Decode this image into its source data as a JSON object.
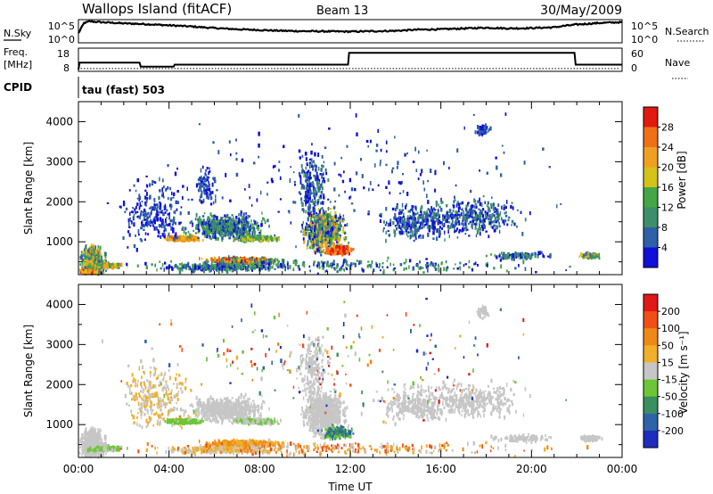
{
  "header": {
    "station": "Wallops Island (fitACF)",
    "beam": "Beam 13",
    "date": "30/May/2009"
  },
  "top_panels": {
    "nsky_label": "N.Sky",
    "nsky_ticks": [
      "10^5",
      "10^0"
    ],
    "nsearch_label": "N.Search",
    "nsearch_ticks": [
      "10^5",
      "10^0"
    ],
    "freq_label": "Freq.",
    "freq_unit": "[MHz]",
    "freq_ticks": [
      "18",
      "8"
    ],
    "nave_label": "Nave",
    "nave_ticks": [
      "60",
      "0"
    ],
    "cpid_label": "CPID",
    "cpid_value": "tau (fast) 503"
  },
  "colors": {
    "power": [
      "#1010d8",
      "#2f5fa8",
      "#3c8f6a",
      "#46a646",
      "#d4c21a",
      "#f0a020",
      "#f07018",
      "#e01a10"
    ],
    "velocity": [
      "#1e2dbe",
      "#2d63a8",
      "#3a8f5e",
      "#6cc636",
      "#c6c6c6",
      "#f0b028",
      "#f08818",
      "#f05018",
      "#e01818"
    ]
  },
  "chart_data": [
    {
      "type": "line",
      "name": "sky-noise",
      "x_hours": [
        0,
        0.25,
        0.5,
        1,
        2,
        3,
        4,
        5,
        6,
        7,
        8,
        9,
        10,
        11,
        12,
        13,
        14,
        15,
        16,
        17,
        18,
        19,
        20,
        21,
        21.5,
        22,
        23,
        24
      ],
      "y_log10": [
        2.0,
        4.6,
        5.0,
        4.8,
        4.5,
        4.3,
        4.0,
        3.7,
        3.3,
        3.0,
        2.8,
        2.6,
        2.5,
        2.45,
        2.4,
        2.5,
        2.6,
        2.9,
        3.0,
        3.2,
        3.4,
        3.2,
        3.3,
        3.5,
        3.9,
        4.2,
        4.6,
        4.8
      ],
      "ylim": [
        0,
        5
      ]
    },
    {
      "type": "line",
      "name": "frequency",
      "x_hours": [
        0,
        0.05,
        2.7,
        2.75,
        4.2,
        4.25,
        11.9,
        11.95,
        21.9,
        21.95,
        24
      ],
      "y_mhz": [
        8,
        11.5,
        11.5,
        9.5,
        9.5,
        10.5,
        10.5,
        16.5,
        16.5,
        10.5,
        10.5
      ],
      "ylim": [
        8,
        18
      ],
      "nave_level": 3
    },
    {
      "type": "heatmap",
      "title": "Power",
      "ylabel": "Slant Range [km]",
      "xlabel": "",
      "colorbar_label": "Power [dB]",
      "colorbar_ticks": [
        "28",
        "24",
        "20",
        "16",
        "12",
        "8",
        "4"
      ],
      "x_tick_labels": [
        "00:00",
        "04:00",
        "08:00",
        "12:00",
        "16:00",
        "20:00",
        "00:00"
      ],
      "y_tick_labels": [
        "1000",
        "2000",
        "3000",
        "4000"
      ],
      "xlim_hours": [
        0,
        24
      ],
      "ylim_km": [
        180,
        4500
      ],
      "blobs": [
        {
          "t": 0.6,
          "r": 500,
          "dt": 0.7,
          "dr": 500,
          "n": 500,
          "lvl": [
            1,
            5
          ]
        },
        {
          "t": 1.2,
          "r": 400,
          "dt": 1.1,
          "dr": 80,
          "n": 140,
          "lvl": [
            2,
            6
          ]
        },
        {
          "t": 0.4,
          "r": 250,
          "dt": 0.5,
          "dr": 60,
          "n": 140,
          "lvl": [
            4,
            7
          ]
        },
        {
          "t": 4.6,
          "r": 1080,
          "dt": 1.0,
          "dr": 70,
          "n": 260,
          "lvl": [
            4,
            6
          ]
        },
        {
          "t": 6.5,
          "r": 1380,
          "dt": 2.2,
          "dr": 420,
          "n": 600,
          "lvl": [
            0,
            3
          ]
        },
        {
          "t": 7.8,
          "r": 1080,
          "dt": 1.4,
          "dr": 90,
          "n": 180,
          "lvl": [
            2,
            4
          ]
        },
        {
          "t": 7.2,
          "r": 520,
          "dt": 2.2,
          "dr": 110,
          "n": 480,
          "lvl": [
            1,
            7
          ]
        },
        {
          "t": 6.3,
          "r": 360,
          "dt": 3.5,
          "dr": 120,
          "n": 260,
          "lvl": [
            0,
            3
          ]
        },
        {
          "t": 10.8,
          "r": 1300,
          "dt": 1.2,
          "dr": 700,
          "n": 800,
          "lvl": [
            0,
            5
          ]
        },
        {
          "t": 11.4,
          "r": 780,
          "dt": 0.8,
          "dr": 130,
          "n": 260,
          "lvl": [
            5,
            7
          ]
        },
        {
          "t": 10.3,
          "r": 2400,
          "dt": 0.9,
          "dr": 1000,
          "n": 200,
          "lvl": [
            0,
            2
          ]
        },
        {
          "t": 5.6,
          "r": 2400,
          "dt": 0.6,
          "dr": 600,
          "n": 90,
          "lvl": [
            0,
            1
          ]
        },
        {
          "t": 3.4,
          "r": 1700,
          "dt": 2.0,
          "dr": 1100,
          "n": 260,
          "lvl": [
            0,
            1
          ]
        },
        {
          "t": 14.8,
          "r": 1500,
          "dt": 2.0,
          "dr": 600,
          "n": 260,
          "lvl": [
            0,
            2
          ]
        },
        {
          "t": 17.3,
          "r": 1600,
          "dt": 3.0,
          "dr": 600,
          "n": 380,
          "lvl": [
            0,
            2
          ]
        },
        {
          "t": 17.8,
          "r": 3800,
          "dt": 0.4,
          "dr": 200,
          "n": 60,
          "lvl": [
            0,
            1
          ]
        },
        {
          "t": 19.5,
          "r": 650,
          "dt": 1.8,
          "dr": 120,
          "n": 100,
          "lvl": [
            0,
            3
          ]
        },
        {
          "t": 22.6,
          "r": 650,
          "dt": 0.6,
          "dr": 70,
          "n": 120,
          "lvl": [
            1,
            5
          ]
        },
        {
          "t": 12.0,
          "r": 400,
          "dt": 12.0,
          "dr": 220,
          "n": 260,
          "lvl": [
            0,
            3
          ]
        },
        {
          "t": 12.0,
          "r": 2600,
          "dt": 12.0,
          "dr": 2000,
          "n": 200,
          "lvl": [
            0,
            1
          ]
        }
      ]
    },
    {
      "type": "heatmap",
      "title": "Velocity",
      "ylabel": "Slant Range [km]",
      "xlabel": "Time UT",
      "colorbar_label": "Velocity [m s⁻¹]",
      "colorbar_ticks": [
        "200",
        "100",
        "50",
        "15",
        "-15",
        "-50",
        "-100",
        "-200"
      ],
      "x_tick_labels": [
        "00:00",
        "04:00",
        "08:00",
        "12:00",
        "16:00",
        "20:00",
        "00:00"
      ],
      "y_tick_labels": [
        "1000",
        "2000",
        "3000",
        "4000"
      ],
      "xlim_hours": [
        0,
        24
      ],
      "ylim_km": [
        180,
        4500
      ],
      "blobs": [
        {
          "t": 0.6,
          "r": 500,
          "dt": 0.7,
          "dr": 500,
          "n": 500,
          "lvl": [
            4,
            4
          ]
        },
        {
          "t": 1.2,
          "r": 400,
          "dt": 1.1,
          "dr": 80,
          "n": 140,
          "lvl": [
            3,
            4
          ]
        },
        {
          "t": 4.6,
          "r": 1080,
          "dt": 1.0,
          "dr": 70,
          "n": 260,
          "lvl": [
            3,
            3
          ]
        },
        {
          "t": 6.5,
          "r": 1380,
          "dt": 2.2,
          "dr": 420,
          "n": 600,
          "lvl": [
            4,
            4
          ]
        },
        {
          "t": 7.8,
          "r": 1080,
          "dt": 1.4,
          "dr": 90,
          "n": 180,
          "lvl": [
            3,
            4
          ]
        },
        {
          "t": 7.2,
          "r": 520,
          "dt": 2.2,
          "dr": 110,
          "n": 480,
          "lvl": [
            5,
            6
          ]
        },
        {
          "t": 6.3,
          "r": 360,
          "dt": 3.5,
          "dr": 120,
          "n": 260,
          "lvl": [
            4,
            5
          ]
        },
        {
          "t": 10.8,
          "r": 1300,
          "dt": 1.2,
          "dr": 700,
          "n": 800,
          "lvl": [
            4,
            4
          ]
        },
        {
          "t": 11.4,
          "r": 800,
          "dt": 0.9,
          "dr": 200,
          "n": 200,
          "lvl": [
            1,
            3
          ]
        },
        {
          "t": 10.3,
          "r": 2400,
          "dt": 0.9,
          "dr": 1000,
          "n": 200,
          "lvl": [
            4,
            4
          ]
        },
        {
          "t": 3.4,
          "r": 1700,
          "dt": 2.0,
          "dr": 1100,
          "n": 260,
          "lvl": [
            4,
            5
          ]
        },
        {
          "t": 14.8,
          "r": 1500,
          "dt": 2.0,
          "dr": 600,
          "n": 260,
          "lvl": [
            4,
            4
          ]
        },
        {
          "t": 17.3,
          "r": 1600,
          "dt": 3.0,
          "dr": 600,
          "n": 380,
          "lvl": [
            4,
            4
          ]
        },
        {
          "t": 17.8,
          "r": 3800,
          "dt": 0.4,
          "dr": 200,
          "n": 60,
          "lvl": [
            4,
            4
          ]
        },
        {
          "t": 19.5,
          "r": 650,
          "dt": 1.8,
          "dr": 120,
          "n": 100,
          "lvl": [
            4,
            4
          ]
        },
        {
          "t": 22.6,
          "r": 650,
          "dt": 0.6,
          "dr": 70,
          "n": 120,
          "lvl": [
            4,
            4
          ]
        },
        {
          "t": 12.0,
          "r": 400,
          "dt": 12.0,
          "dr": 220,
          "n": 260,
          "lvl": [
            4,
            7
          ]
        },
        {
          "t": 12.0,
          "r": 2600,
          "dt": 12.0,
          "dr": 2000,
          "n": 200,
          "lvl": [
            0,
            8
          ]
        }
      ]
    }
  ]
}
